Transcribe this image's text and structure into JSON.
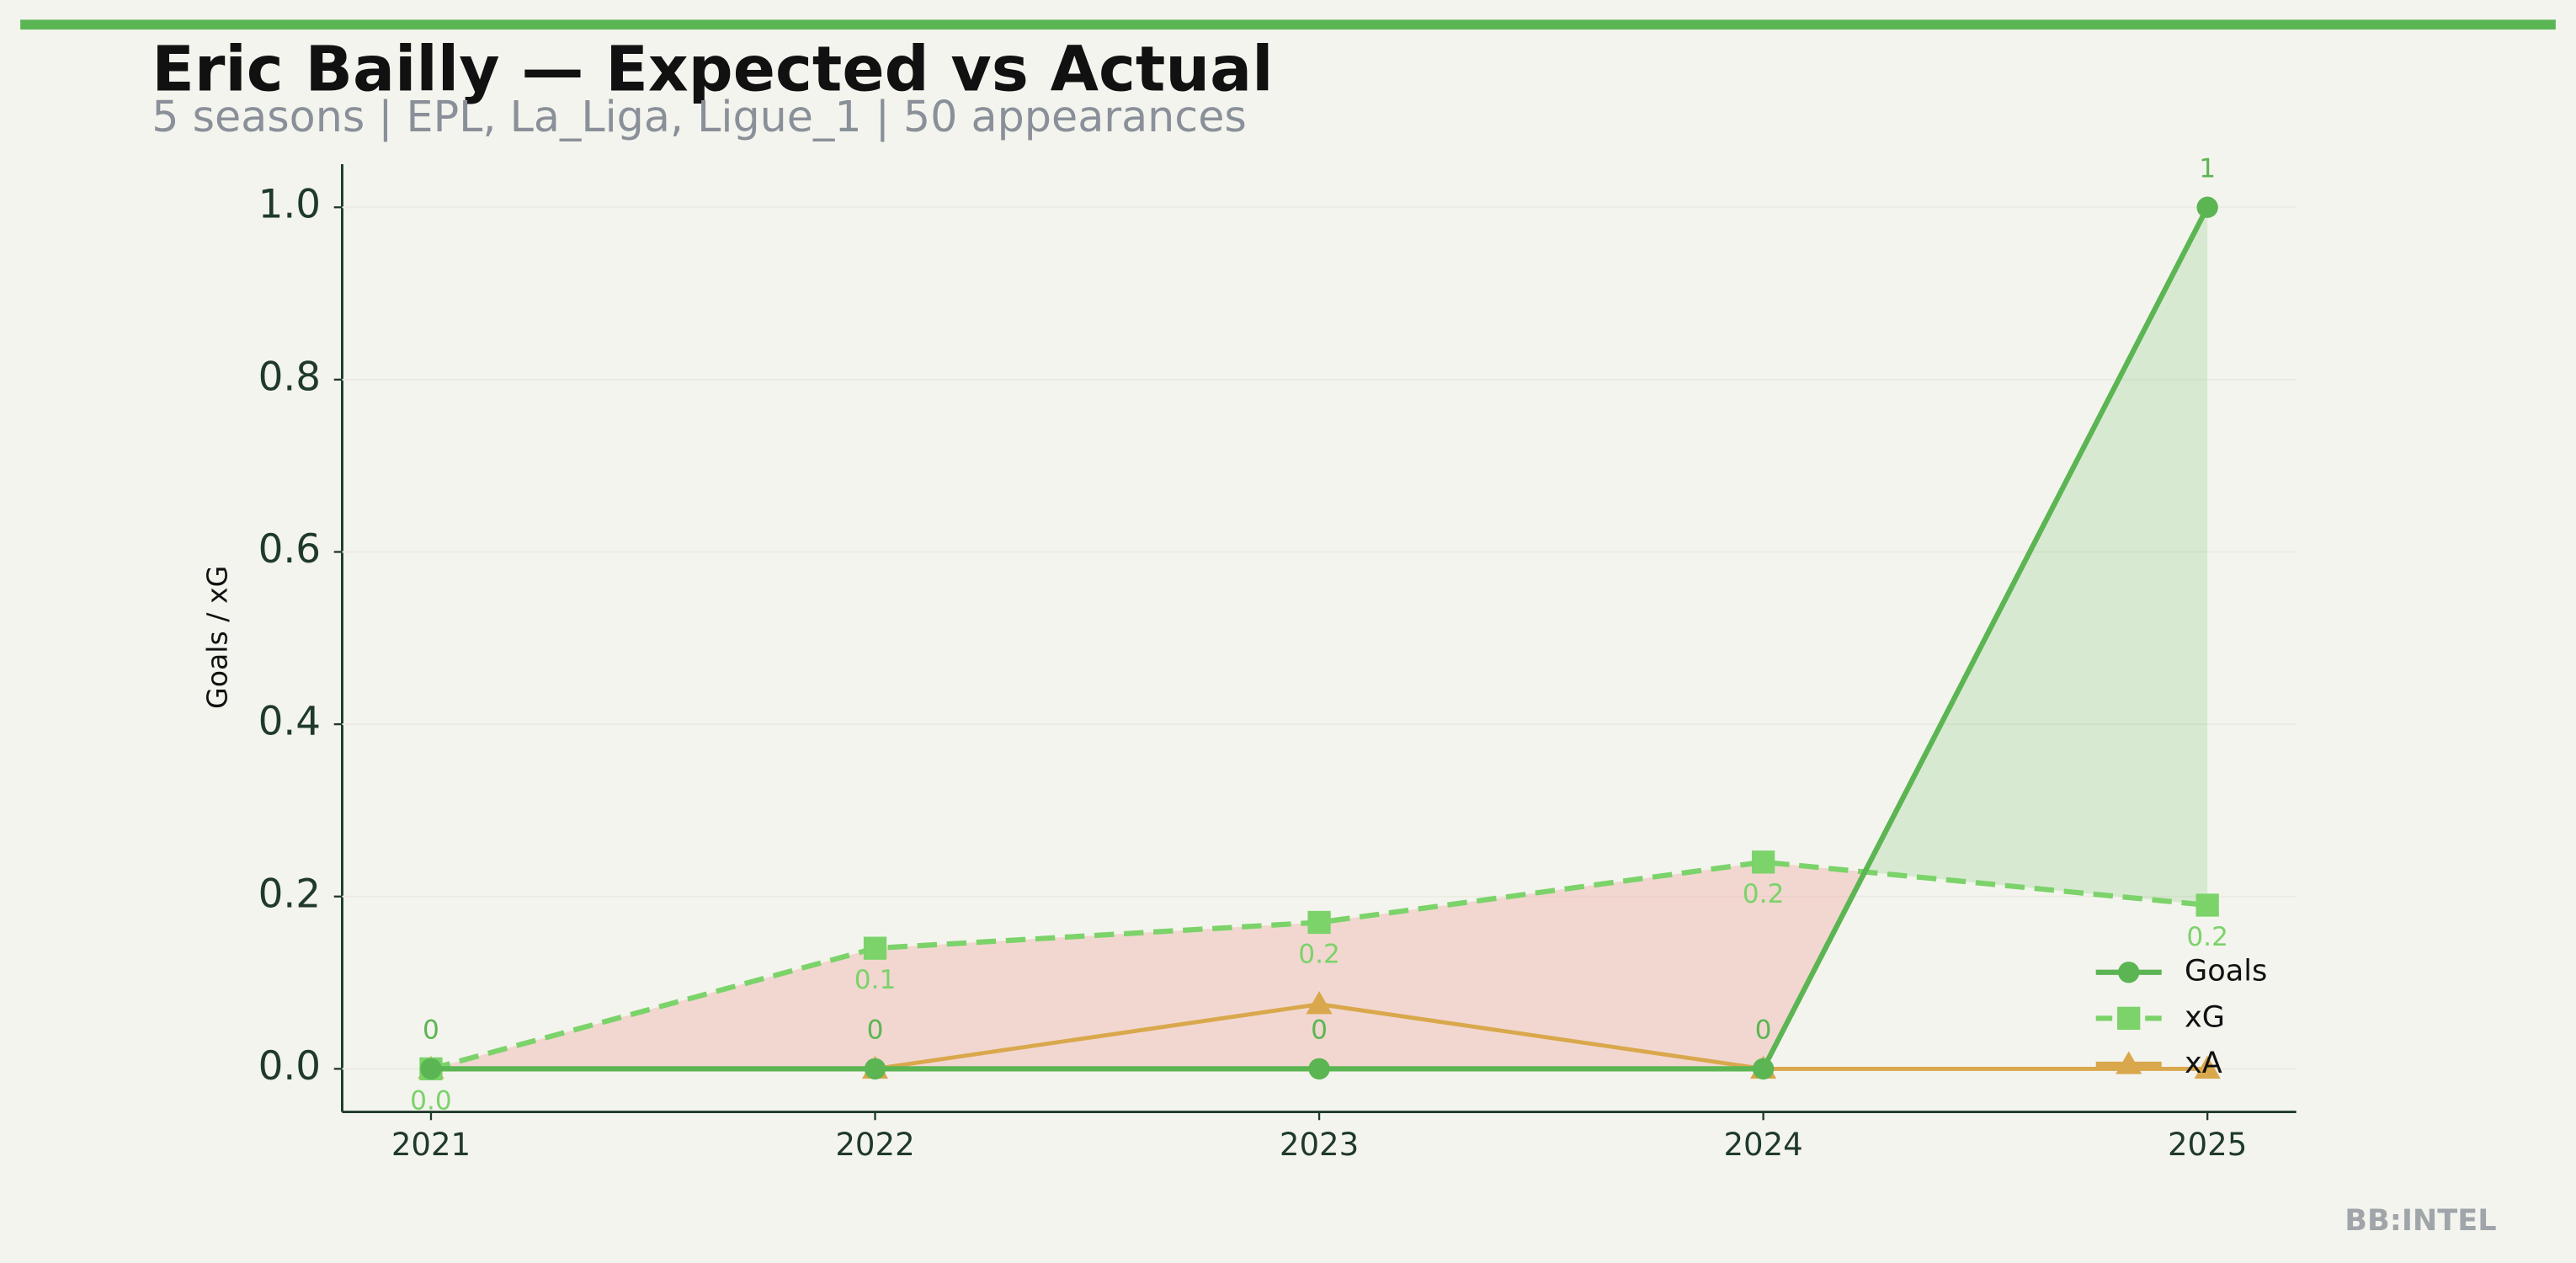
{
  "chart_data": {
    "type": "line",
    "title": "Eric Bailly — Expected vs Actual",
    "subtitle": "5 seasons | EPL, La_Liga, Ligue_1 | 50 appearances",
    "y_label": "Goals / xG",
    "watermark": "BB:INTEL",
    "x": [
      2021,
      2022,
      2023,
      2024,
      2025
    ],
    "xlim": [
      2020.8,
      2025.2
    ],
    "xticks": [
      2021,
      2022,
      2023,
      2024,
      2025
    ],
    "ylim": [
      -0.05,
      1.05
    ],
    "yticks": [
      {
        "value": 0,
        "label": "0.0"
      },
      0.2,
      0.4,
      0.6,
      0.8,
      {
        "value": 1,
        "label": "1.0"
      }
    ],
    "grid": true,
    "legend": "lower right",
    "series": [
      {
        "name": "Goals",
        "color": "#5bb553",
        "marker": "circle",
        "dash": false,
        "values": [
          0,
          0,
          0,
          0,
          1
        ],
        "labels_position": "above"
      },
      {
        "name": "xG",
        "color": "#7bd36a",
        "marker": "square",
        "dash": true,
        "values": [
          0,
          0.14,
          0.17,
          0.24,
          0.19
        ],
        "value_labels": [
          "0.0",
          "0.1",
          "0.2",
          "0.2",
          "0.2"
        ],
        "labels_position": "below"
      },
      {
        "name": "xA",
        "color": "#d9a84c",
        "marker": "triangle",
        "dash": false,
        "values": [
          0,
          0,
          0.075,
          0,
          0
        ]
      }
    ]
  }
}
